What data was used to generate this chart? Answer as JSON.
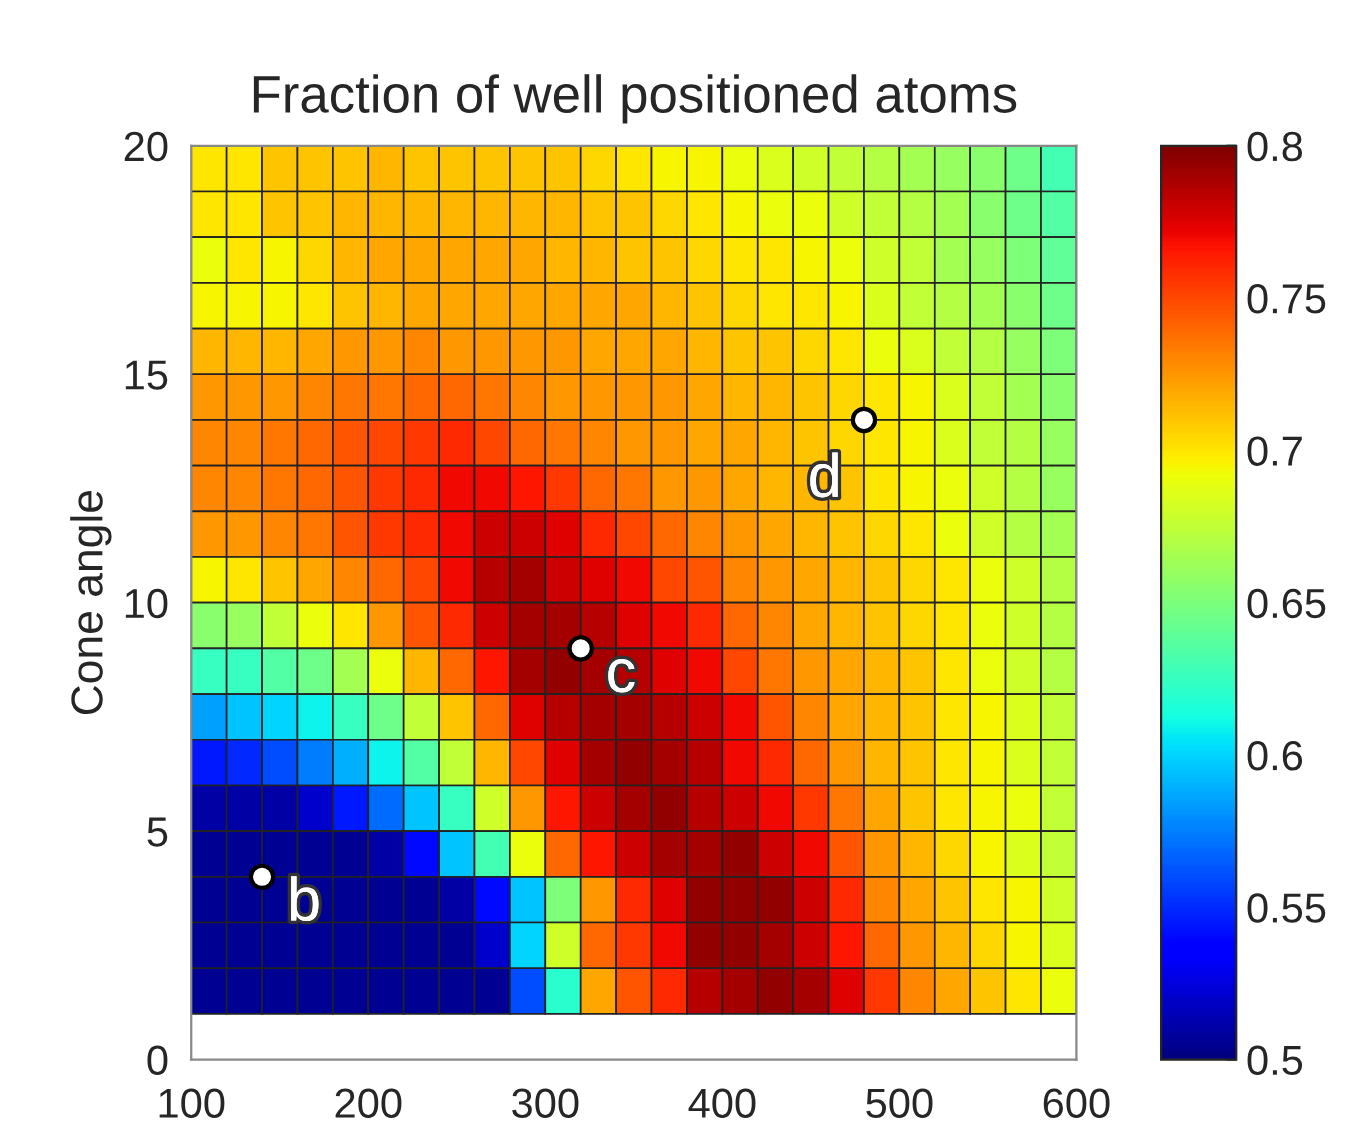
{
  "chart_data": {
    "type": "heatmap",
    "title": "Fraction of well positioned atoms",
    "ylabel": "Cone angle",
    "x": [
      110,
      130,
      150,
      170,
      190,
      210,
      230,
      250,
      270,
      290,
      310,
      330,
      350,
      370,
      390,
      410,
      430,
      450,
      470,
      490,
      510,
      530,
      550,
      570,
      590
    ],
    "y": [
      19.5,
      18.5,
      17.5,
      16.5,
      15.5,
      14.5,
      13.5,
      12.5,
      11.5,
      10.5,
      9.5,
      8.5,
      7.5,
      6.5,
      5.5,
      4.5,
      3.5,
      2.5,
      1.5
    ],
    "cells": [
      [
        0.7,
        0.7,
        0.71,
        0.71,
        0.71,
        0.715,
        0.71,
        0.71,
        0.71,
        0.71,
        0.71,
        0.705,
        0.7,
        0.695,
        0.695,
        0.69,
        0.685,
        0.68,
        0.675,
        0.67,
        0.665,
        0.66,
        0.655,
        0.645,
        0.63
      ],
      [
        0.7,
        0.7,
        0.71,
        0.71,
        0.715,
        0.715,
        0.715,
        0.715,
        0.715,
        0.715,
        0.715,
        0.71,
        0.71,
        0.705,
        0.7,
        0.695,
        0.69,
        0.69,
        0.68,
        0.675,
        0.67,
        0.665,
        0.655,
        0.645,
        0.635
      ],
      [
        0.69,
        0.7,
        0.695,
        0.705,
        0.715,
        0.72,
        0.72,
        0.72,
        0.72,
        0.72,
        0.715,
        0.715,
        0.71,
        0.71,
        0.705,
        0.7,
        0.7,
        0.695,
        0.69,
        0.68,
        0.675,
        0.665,
        0.66,
        0.65,
        0.64
      ],
      [
        0.695,
        0.695,
        0.695,
        0.7,
        0.71,
        0.715,
        0.72,
        0.72,
        0.72,
        0.72,
        0.72,
        0.72,
        0.72,
        0.715,
        0.71,
        0.705,
        0.7,
        0.7,
        0.695,
        0.685,
        0.675,
        0.67,
        0.665,
        0.655,
        0.645
      ],
      [
        0.715,
        0.715,
        0.715,
        0.72,
        0.725,
        0.725,
        0.73,
        0.725,
        0.725,
        0.725,
        0.725,
        0.72,
        0.72,
        0.72,
        0.715,
        0.71,
        0.71,
        0.705,
        0.7,
        0.69,
        0.685,
        0.675,
        0.67,
        0.66,
        0.65
      ],
      [
        0.725,
        0.725,
        0.725,
        0.73,
        0.735,
        0.735,
        0.74,
        0.74,
        0.735,
        0.73,
        0.725,
        0.725,
        0.725,
        0.725,
        0.72,
        0.715,
        0.715,
        0.71,
        0.705,
        0.7,
        0.695,
        0.685,
        0.675,
        0.665,
        0.655
      ],
      [
        0.73,
        0.73,
        0.735,
        0.74,
        0.745,
        0.75,
        0.755,
        0.76,
        0.75,
        0.74,
        0.735,
        0.73,
        0.725,
        0.725,
        0.72,
        0.72,
        0.715,
        0.71,
        0.705,
        0.7,
        0.695,
        0.685,
        0.675,
        0.67,
        0.66
      ],
      [
        0.73,
        0.73,
        0.735,
        0.74,
        0.745,
        0.755,
        0.76,
        0.77,
        0.77,
        0.765,
        0.755,
        0.74,
        0.735,
        0.725,
        0.725,
        0.72,
        0.715,
        0.715,
        0.71,
        0.7,
        0.695,
        0.69,
        0.68,
        0.67,
        0.66
      ],
      [
        0.725,
        0.725,
        0.73,
        0.735,
        0.745,
        0.755,
        0.76,
        0.77,
        0.78,
        0.78,
        0.775,
        0.76,
        0.75,
        0.74,
        0.73,
        0.725,
        0.72,
        0.715,
        0.71,
        0.705,
        0.7,
        0.69,
        0.68,
        0.67,
        0.665
      ],
      [
        0.695,
        0.7,
        0.71,
        0.72,
        0.73,
        0.74,
        0.75,
        0.77,
        0.785,
        0.79,
        0.78,
        0.775,
        0.77,
        0.75,
        0.745,
        0.73,
        0.725,
        0.72,
        0.715,
        0.71,
        0.705,
        0.7,
        0.69,
        0.68,
        0.67
      ],
      [
        0.655,
        0.66,
        0.675,
        0.69,
        0.7,
        0.725,
        0.745,
        0.76,
        0.78,
        0.79,
        0.79,
        0.785,
        0.775,
        0.77,
        0.76,
        0.74,
        0.73,
        0.72,
        0.715,
        0.71,
        0.705,
        0.7,
        0.69,
        0.68,
        0.67
      ],
      [
        0.625,
        0.625,
        0.635,
        0.645,
        0.665,
        0.69,
        0.715,
        0.74,
        0.765,
        0.79,
        0.795,
        0.79,
        0.785,
        0.775,
        0.77,
        0.75,
        0.735,
        0.725,
        0.72,
        0.715,
        0.71,
        0.7,
        0.69,
        0.68,
        0.67
      ],
      [
        0.585,
        0.595,
        0.6,
        0.61,
        0.625,
        0.645,
        0.675,
        0.71,
        0.74,
        0.775,
        0.785,
        0.79,
        0.79,
        0.785,
        0.78,
        0.77,
        0.745,
        0.73,
        0.72,
        0.715,
        0.71,
        0.7,
        0.695,
        0.685,
        0.675
      ],
      [
        0.545,
        0.55,
        0.56,
        0.575,
        0.59,
        0.61,
        0.635,
        0.675,
        0.715,
        0.75,
        0.775,
        0.79,
        0.795,
        0.79,
        0.785,
        0.77,
        0.76,
        0.74,
        0.725,
        0.715,
        0.71,
        0.7,
        0.695,
        0.685,
        0.675
      ],
      [
        0.51,
        0.51,
        0.51,
        0.52,
        0.545,
        0.57,
        0.595,
        0.625,
        0.68,
        0.725,
        0.765,
        0.78,
        0.79,
        0.795,
        0.785,
        0.78,
        0.77,
        0.755,
        0.735,
        0.72,
        0.71,
        0.7,
        0.695,
        0.69,
        0.675
      ],
      [
        0.505,
        0.505,
        0.505,
        0.505,
        0.505,
        0.51,
        0.54,
        0.595,
        0.63,
        0.69,
        0.74,
        0.765,
        0.78,
        0.79,
        0.79,
        0.795,
        0.78,
        0.77,
        0.745,
        0.725,
        0.715,
        0.705,
        0.695,
        0.685,
        0.675
      ],
      [
        0.505,
        0.505,
        0.505,
        0.505,
        0.505,
        0.505,
        0.505,
        0.51,
        0.54,
        0.595,
        0.65,
        0.725,
        0.76,
        0.775,
        0.795,
        0.795,
        0.795,
        0.78,
        0.76,
        0.73,
        0.72,
        0.71,
        0.7,
        0.695,
        0.68
      ],
      [
        0.505,
        0.505,
        0.505,
        0.505,
        0.505,
        0.505,
        0.505,
        0.505,
        0.52,
        0.6,
        0.68,
        0.74,
        0.755,
        0.77,
        0.795,
        0.795,
        0.79,
        0.78,
        0.765,
        0.74,
        0.725,
        0.715,
        0.705,
        0.695,
        0.685
      ],
      [
        0.505,
        0.505,
        0.505,
        0.505,
        0.505,
        0.505,
        0.505,
        0.505,
        0.505,
        0.56,
        0.62,
        0.72,
        0.745,
        0.76,
        0.785,
        0.79,
        0.795,
        0.79,
        0.775,
        0.755,
        0.73,
        0.72,
        0.71,
        0.7,
        0.69
      ]
    ],
    "clim": [
      0.5,
      0.8
    ],
    "cticks": [
      0.5,
      0.55,
      0.6,
      0.65,
      0.7,
      0.75,
      0.8
    ],
    "xlim": [
      100,
      600
    ],
    "ylim": [
      0,
      20
    ],
    "xticks": [
      100,
      200,
      300,
      400,
      500,
      600
    ],
    "yticks": [
      0,
      5,
      10,
      15,
      20
    ],
    "grid": false,
    "annotations": [
      {
        "text": "b",
        "x": 140,
        "y": 4
      },
      {
        "text": "c",
        "x": 320,
        "y": 9
      },
      {
        "text": "d",
        "x": 480,
        "y": 14
      }
    ]
  }
}
